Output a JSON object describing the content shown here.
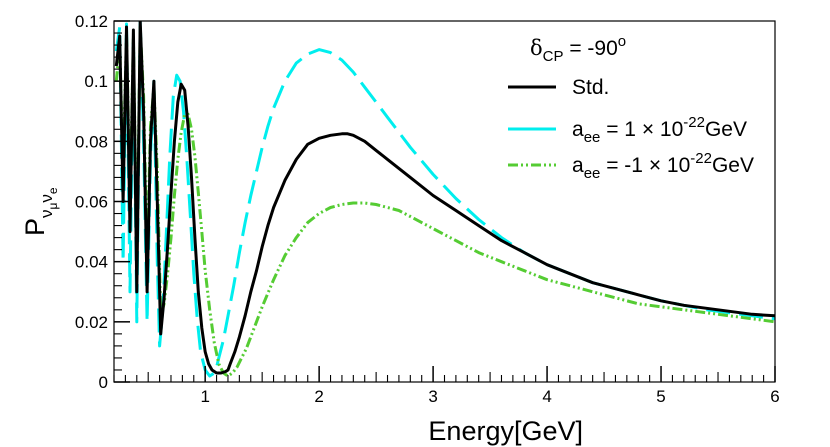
{
  "chart_data": {
    "type": "line",
    "title": "",
    "xlabel": "Energy[GeV]",
    "ylabel": {
      "base": "P",
      "sub1": "ν",
      "sub1sub": "μ",
      "sub2": "ν",
      "sub2sub": "e"
    },
    "xlim": [
      0.2,
      6.0
    ],
    "ylim": [
      0,
      0.12
    ],
    "x_ticks": [
      1,
      2,
      3,
      4,
      5,
      6
    ],
    "x_tick_labels": [
      "1",
      "2",
      "3",
      "4",
      "5",
      "6"
    ],
    "y_ticks": [
      0,
      0.02,
      0.04,
      0.06,
      0.08,
      0.1,
      0.12
    ],
    "y_tick_labels": [
      "0",
      "0.02",
      "0.04",
      "0.06",
      "0.08",
      "0.1",
      "0.12"
    ],
    "legend": {
      "position": "top-right",
      "header": {
        "symbol": "δ",
        "sub": "CP",
        "text": " = -90",
        "sup": "o"
      },
      "entries": [
        {
          "series": "std",
          "label": "Std."
        },
        {
          "series": "aee_pos",
          "label": {
            "pre": "a",
            "sub": "ee",
            "mid": " = 1 × 10",
            "sup": "-22",
            "post": "GeV"
          }
        },
        {
          "series": "aee_neg",
          "label": {
            "pre": "a",
            "sub": "ee",
            "mid": " = -1 × 10",
            "sup": "-22",
            "post": "GeV"
          }
        }
      ]
    },
    "series": [
      {
        "id": "std",
        "name": "Std.",
        "color": "#000000",
        "style": "solid",
        "x": [
          0.22,
          0.25,
          0.28,
          0.31,
          0.34,
          0.37,
          0.4,
          0.43,
          0.46,
          0.49,
          0.52,
          0.55,
          0.58,
          0.61,
          0.64,
          0.67,
          0.7,
          0.73,
          0.76,
          0.79,
          0.82,
          0.85,
          0.88,
          0.91,
          0.94,
          0.97,
          1.0,
          1.03,
          1.06,
          1.1,
          1.14,
          1.18,
          1.2,
          1.22,
          1.26,
          1.3,
          1.35,
          1.4,
          1.45,
          1.5,
          1.55,
          1.6,
          1.7,
          1.8,
          1.9,
          2.0,
          2.1,
          2.2,
          2.25,
          2.3,
          2.4,
          2.5,
          2.6,
          2.8,
          3.0,
          3.2,
          3.4,
          3.6,
          3.8,
          4.0,
          4.2,
          4.4,
          4.6,
          4.8,
          5.0,
          5.2,
          5.4,
          5.6,
          5.8,
          6.0
        ],
        "y": [
          0.105,
          0.115,
          0.06,
          0.118,
          0.05,
          0.117,
          0.03,
          0.12,
          0.09,
          0.03,
          0.08,
          0.1,
          0.06,
          0.016,
          0.028,
          0.045,
          0.063,
          0.08,
          0.093,
          0.099,
          0.097,
          0.085,
          0.068,
          0.048,
          0.03,
          0.018,
          0.01,
          0.006,
          0.004,
          0.003,
          0.003,
          0.0035,
          0.004,
          0.006,
          0.01,
          0.015,
          0.022,
          0.03,
          0.037,
          0.045,
          0.052,
          0.058,
          0.067,
          0.074,
          0.079,
          0.081,
          0.082,
          0.0825,
          0.0825,
          0.082,
          0.08,
          0.077,
          0.074,
          0.068,
          0.062,
          0.057,
          0.052,
          0.047,
          0.043,
          0.039,
          0.036,
          0.033,
          0.031,
          0.029,
          0.027,
          0.0255,
          0.0245,
          0.0235,
          0.0225,
          0.022
        ]
      },
      {
        "id": "aee_pos",
        "name": "a_ee = 1×10^-22 GeV",
        "color": "#00eeee",
        "style": "long-dash",
        "x": [
          0.22,
          0.25,
          0.28,
          0.31,
          0.34,
          0.37,
          0.4,
          0.43,
          0.46,
          0.49,
          0.52,
          0.55,
          0.58,
          0.6,
          0.63,
          0.66,
          0.69,
          0.72,
          0.75,
          0.78,
          0.81,
          0.84,
          0.87,
          0.9,
          0.93,
          0.96,
          1.0,
          1.04,
          1.08,
          1.1,
          1.12,
          1.16,
          1.2,
          1.25,
          1.3,
          1.35,
          1.4,
          1.45,
          1.5,
          1.55,
          1.6,
          1.7,
          1.8,
          1.9,
          2.0,
          2.05,
          2.1,
          2.2,
          2.3,
          2.4,
          2.5,
          2.6,
          2.8,
          3.0,
          3.2,
          3.4,
          3.6,
          3.8,
          4.0,
          4.2,
          4.4,
          4.6,
          4.8,
          5.0,
          5.2,
          5.4,
          5.6,
          5.8,
          6.0
        ],
        "y": [
          0.11,
          0.118,
          0.04,
          0.119,
          0.03,
          0.115,
          0.02,
          0.12,
          0.08,
          0.02,
          0.075,
          0.1,
          0.04,
          0.012,
          0.025,
          0.05,
          0.075,
          0.095,
          0.102,
          0.1,
          0.09,
          0.074,
          0.055,
          0.036,
          0.021,
          0.01,
          0.004,
          0.002,
          0.003,
          0.005,
          0.008,
          0.014,
          0.022,
          0.032,
          0.043,
          0.053,
          0.062,
          0.07,
          0.078,
          0.085,
          0.091,
          0.1,
          0.106,
          0.109,
          0.1105,
          0.11,
          0.1095,
          0.107,
          0.103,
          0.098,
          0.093,
          0.088,
          0.078,
          0.069,
          0.061,
          0.054,
          0.048,
          0.043,
          0.039,
          0.036,
          0.033,
          0.031,
          0.029,
          0.027,
          0.0255,
          0.024,
          0.023,
          0.022,
          0.021
        ]
      },
      {
        "id": "aee_neg",
        "name": "a_ee = -1×10^-22 GeV",
        "color": "#55cc33",
        "style": "dash-dot-dot",
        "x": [
          0.22,
          0.25,
          0.28,
          0.31,
          0.34,
          0.37,
          0.4,
          0.43,
          0.46,
          0.49,
          0.52,
          0.55,
          0.58,
          0.61,
          0.64,
          0.67,
          0.7,
          0.73,
          0.76,
          0.79,
          0.82,
          0.85,
          0.88,
          0.91,
          0.94,
          0.97,
          1.0,
          1.04,
          1.08,
          1.12,
          1.16,
          1.2,
          1.24,
          1.28,
          1.32,
          1.36,
          1.4,
          1.45,
          1.5,
          1.6,
          1.7,
          1.8,
          1.9,
          2.0,
          2.1,
          2.2,
          2.3,
          2.4,
          2.5,
          2.6,
          2.7,
          2.8,
          3.0,
          3.2,
          3.4,
          3.6,
          3.8,
          4.0,
          4.2,
          4.4,
          4.6,
          4.8,
          5.0,
          5.2,
          5.4,
          5.6,
          5.8,
          6.0
        ],
        "y": [
          0.1,
          0.112,
          0.07,
          0.115,
          0.06,
          0.114,
          0.04,
          0.118,
          0.095,
          0.04,
          0.085,
          0.098,
          0.07,
          0.022,
          0.026,
          0.036,
          0.048,
          0.062,
          0.074,
          0.083,
          0.089,
          0.089,
          0.084,
          0.075,
          0.063,
          0.05,
          0.037,
          0.024,
          0.013,
          0.006,
          0.003,
          0.002,
          0.003,
          0.005,
          0.008,
          0.011,
          0.015,
          0.02,
          0.025,
          0.034,
          0.042,
          0.048,
          0.053,
          0.056,
          0.058,
          0.059,
          0.0595,
          0.0595,
          0.059,
          0.058,
          0.057,
          0.055,
          0.051,
          0.047,
          0.043,
          0.04,
          0.037,
          0.034,
          0.032,
          0.03,
          0.028,
          0.026,
          0.025,
          0.024,
          0.023,
          0.022,
          0.021,
          0.02
        ]
      }
    ]
  }
}
